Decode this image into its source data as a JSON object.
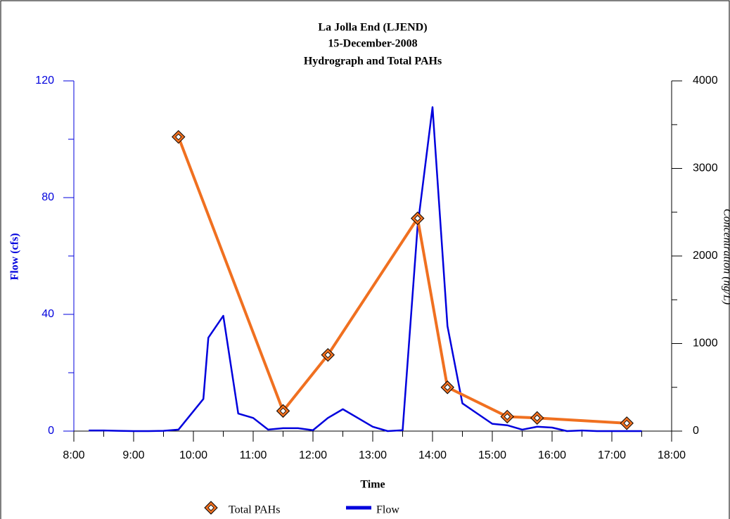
{
  "chart_data": {
    "type": "line",
    "title": [
      "La Jolla End (LJEND)",
      "15-December-2008",
      "Hydrograph and Total PAHs"
    ],
    "x_label": "Time",
    "y_label": "Flow (cfs)",
    "y2_label": "Concentration (ng/L)",
    "xlim": [
      8,
      18
    ],
    "xticks": [
      {
        "value": 8,
        "label": "8:00"
      },
      {
        "value": 9,
        "label": "9:00"
      },
      {
        "value": 10,
        "label": "10:00"
      },
      {
        "value": 11,
        "label": "11:00"
      },
      {
        "value": 12,
        "label": "12:00"
      },
      {
        "value": 13,
        "label": "13:00"
      },
      {
        "value": 14,
        "label": "14:00"
      },
      {
        "value": 15,
        "label": "15:00"
      },
      {
        "value": 16,
        "label": "16:00"
      },
      {
        "value": 17,
        "label": "17:00"
      },
      {
        "value": 18,
        "label": "18:00"
      }
    ],
    "xminorticks": [
      8.5,
      9.5,
      10.5,
      11.5,
      12.5,
      13.5,
      14.5,
      15.5,
      16.5,
      17.5
    ],
    "ylim": [
      0,
      120
    ],
    "yticks": [
      0,
      40,
      80,
      120
    ],
    "yminorticks": [
      20,
      60,
      100
    ],
    "y2lim": [
      0,
      4000
    ],
    "y2ticks": [
      0,
      1000,
      2000,
      3000,
      4000
    ],
    "y2minorticks": [
      500,
      1500,
      2500,
      3500
    ],
    "series": [
      {
        "name": "Total PAHs",
        "color": "#f07020",
        "axis": "y2",
        "marker": "diamond",
        "x": [
          9.75,
          11.5,
          12.25,
          13.75,
          14.25,
          15.25,
          15.75,
          17.25
        ],
        "values": [
          3360,
          230,
          870,
          2430,
          500,
          165,
          150,
          90
        ]
      },
      {
        "name": "Flow",
        "color": "#0000dd",
        "axis": "y",
        "x": [
          8.25,
          8.5,
          8.75,
          9,
          9.25,
          9.5,
          9.75,
          10.1667,
          10.25,
          10.5,
          10.75,
          11,
          11.25,
          11.5,
          11.75,
          12,
          12.25,
          12.5,
          12.75,
          13,
          13.25,
          13.5,
          13.75,
          14,
          14.25,
          14.5,
          14.75,
          15,
          15.25,
          15.5,
          15.75,
          16,
          16.25,
          16.5,
          16.75,
          17,
          17.25,
          17.5
        ],
        "values": [
          0.2,
          0.2,
          0.1,
          0,
          0,
          0.1,
          0.5,
          11,
          32,
          39.5,
          6,
          4.5,
          0.5,
          1,
          1,
          0.3,
          4.5,
          7.5,
          4.5,
          1.5,
          0,
          0.3,
          70,
          111,
          36,
          9.5,
          6,
          2.5,
          2,
          0.5,
          1.5,
          1.2,
          0,
          0.2,
          0,
          0,
          0,
          0
        ]
      }
    ]
  }
}
